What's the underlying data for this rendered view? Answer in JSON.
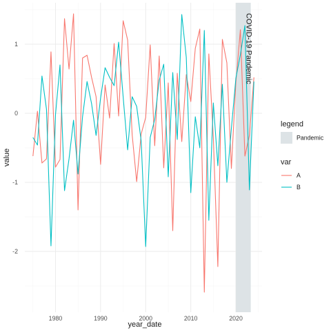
{
  "chart_data": {
    "type": "line",
    "title": "",
    "xlabel": "year_date",
    "ylabel": "value",
    "xlim": [
      1973.2,
      2025.8
    ],
    "ylim": [
      -2.88,
      1.6
    ],
    "x_ticks": [
      1980,
      1990,
      2000,
      2010,
      2020
    ],
    "y_ticks": [
      1,
      0,
      -1,
      -2
    ],
    "x_tick_labels": [
      "1980",
      "1990",
      "2000",
      "2010",
      "2020"
    ],
    "y_tick_labels": [
      "1",
      "0",
      "-1",
      "-2"
    ],
    "grid": true,
    "background": "#ffffff",
    "annotation": {
      "text": "COVID-19  Pandemic",
      "x": 2023.3,
      "y": 1.45,
      "rotation": 90
    },
    "shaded_region": {
      "label": "Pandemic",
      "xmin": 2020.0,
      "xmax": 2023.3,
      "color": "#dde3e6"
    },
    "legend_fill": {
      "title": "legend",
      "items": [
        {
          "label": "Pandemic",
          "color": "#dde3e6"
        }
      ]
    },
    "legend_color": {
      "title": "var",
      "items": [
        {
          "label": "A",
          "color": "#F8766D"
        },
        {
          "label": "B",
          "color": "#00BFC4"
        }
      ]
    },
    "x": [
      1975,
      1976,
      1977,
      1978,
      1979,
      1980,
      1981,
      1982,
      1983,
      1984,
      1985,
      1986,
      1987,
      1988,
      1989,
      1990,
      1991,
      1992,
      1993,
      1994,
      1995,
      1996,
      1997,
      1998,
      1999,
      2000,
      2001,
      2002,
      2003,
      2004,
      2005,
      2006,
      2007,
      2008,
      2009,
      2010,
      2011,
      2012,
      2013,
      2014,
      2015,
      2016,
      2017,
      2018,
      2019,
      2020,
      2021,
      2022,
      2023,
      2024
    ],
    "series": [
      {
        "name": "A",
        "color": "#F8766D",
        "values": [
          -0.62,
          0.03,
          -0.72,
          -0.66,
          0.89,
          -0.78,
          -0.67,
          1.37,
          0.64,
          1.44,
          -1.4,
          0.8,
          0.84,
          0.52,
          0.24,
          -0.74,
          0.41,
          -0.07,
          1.01,
          -0.04,
          1.34,
          1.06,
          -0.31,
          -0.99,
          -0.3,
          -0.06,
          0.99,
          -0.47,
          0.83,
          -0.79,
          0.44,
          -1.7,
          0.58,
          -0.41,
          0.56,
          0.17,
          0.94,
          1.22,
          -2.59,
          0.86,
          -0.35,
          -2.22,
          1.07,
          0.73,
          -0.8,
          0.45,
          1.21,
          -0.62,
          -0.32,
          0.52
        ]
      },
      {
        "name": "B",
        "color": "#00BFC4",
        "values": [
          -0.35,
          -0.46,
          0.54,
          0.06,
          -1.92,
          -0.02,
          0.7,
          -1.12,
          -0.66,
          -0.1,
          -0.88,
          -0.05,
          0.46,
          0.14,
          -0.32,
          0.22,
          0.66,
          0.52,
          0.4,
          1.03,
          0.24,
          -0.53,
          0.24,
          0.1,
          -0.4,
          -1.93,
          -0.35,
          -0.09,
          0.48,
          0.71,
          -0.92,
          0.59,
          -0.38,
          1.43,
          0.81,
          -1.15,
          -0.05,
          -0.5,
          1.2,
          -1.55,
          0.15,
          -0.76,
          0.42,
          -1.0,
          -0.22,
          0.51,
          0.85,
          1.27,
          -1.11,
          0.46
        ]
      }
    ]
  }
}
